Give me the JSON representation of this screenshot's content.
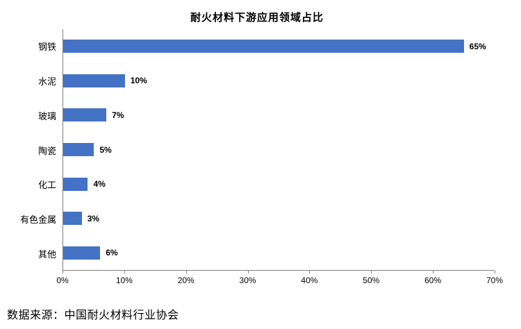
{
  "chart_data": {
    "type": "bar",
    "orientation": "horizontal",
    "title": "耐火材料下游应用领域占比",
    "categories": [
      "钢铁",
      "水泥",
      "玻璃",
      "陶瓷",
      "化工",
      "有色金属",
      "其他"
    ],
    "values": [
      65,
      10,
      7,
      5,
      4,
      3,
      6
    ],
    "value_labels": [
      "65%",
      "10%",
      "7%",
      "5%",
      "4%",
      "3%",
      "6%"
    ],
    "x_ticks": [
      "0%",
      "10%",
      "20%",
      "30%",
      "40%",
      "50%",
      "60%",
      "70%"
    ],
    "x_tick_values": [
      0,
      10,
      20,
      30,
      40,
      50,
      60,
      70
    ],
    "xlim": [
      0,
      70
    ],
    "xlabel": "",
    "ylabel": "",
    "bar_color": "#4472c4",
    "grid": false,
    "legend": false
  },
  "source_note": "数据来源：中国耐火材料行业协会"
}
